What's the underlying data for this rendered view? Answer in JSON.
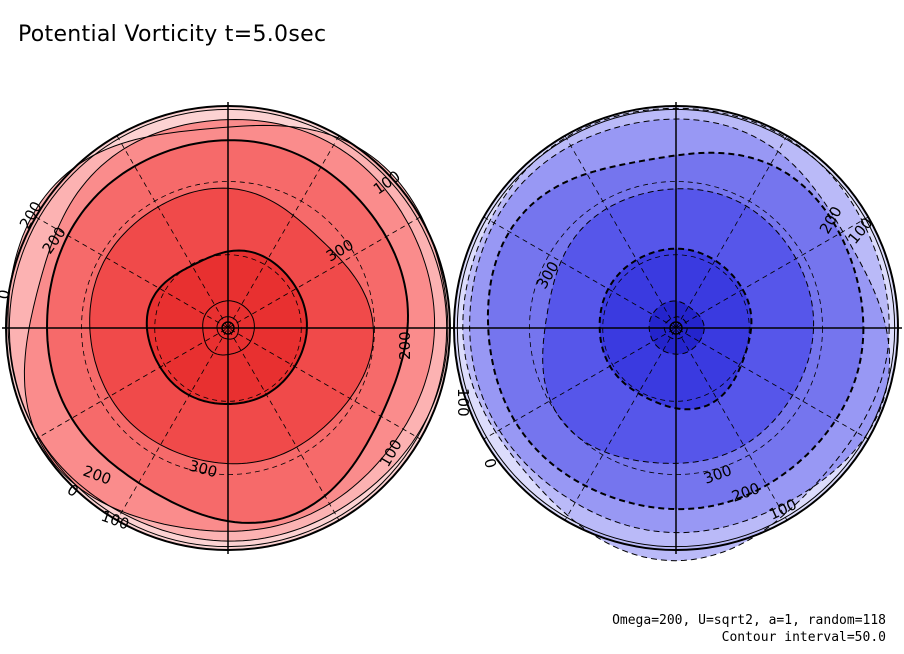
{
  "title": "Potential Vorticity t=5.0sec",
  "footer": {
    "params": "Omega=200, U=sqrt2, a=1, random=118",
    "contour_interval": "Contour interval=50.0"
  },
  "colors": {
    "north_fills": [
      "#fcd2d2",
      "#fcb2b2",
      "#fa8c8c",
      "#f66a6a",
      "#f04a4a",
      "#e83030"
    ],
    "south_fills": [
      "#dcdcfc",
      "#babaf8",
      "#9898f4",
      "#7575ee",
      "#5656ea",
      "#3a3ae0",
      "#2424cc"
    ]
  },
  "north_labels": [
    "100",
    "200",
    "300",
    "0",
    "200",
    "300",
    "200",
    "0",
    "100",
    "100",
    "200"
  ],
  "south_labels": [
    "200",
    "100",
    "300",
    "100",
    "0",
    "300",
    "200",
    "100"
  ]
}
